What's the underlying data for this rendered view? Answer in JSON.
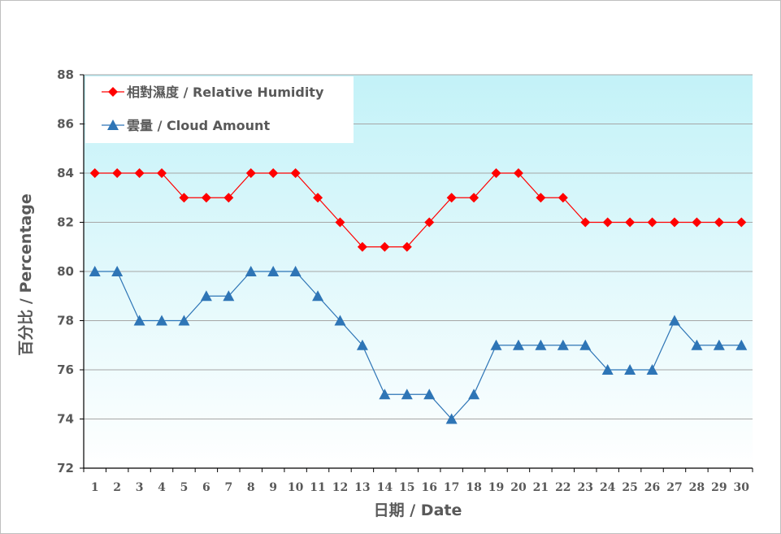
{
  "chart_data": {
    "type": "line",
    "title": "",
    "xlabel": "日期 / Date",
    "ylabel": "百分比 / Percentage",
    "ylim": [
      72,
      88
    ],
    "yticks": [
      72,
      74,
      76,
      78,
      80,
      82,
      84,
      86,
      88
    ],
    "grid": true,
    "legend_position": "upper-left",
    "x": [
      1,
      2,
      3,
      4,
      5,
      6,
      7,
      8,
      9,
      10,
      11,
      12,
      13,
      14,
      15,
      16,
      17,
      18,
      19,
      20,
      21,
      22,
      23,
      24,
      25,
      26,
      27,
      28,
      29,
      30
    ],
    "series": [
      {
        "name": "相對濕度 / Relative Humidity",
        "color": "#ff0000",
        "marker": "diamond",
        "values": [
          84,
          84,
          84,
          84,
          83,
          83,
          83,
          84,
          84,
          84,
          83,
          82,
          81,
          81,
          81,
          82,
          83,
          83,
          84,
          84,
          83,
          83,
          82,
          82,
          82,
          82,
          82,
          82,
          82,
          82
        ]
      },
      {
        "name": "雲量 / Cloud Amount",
        "color": "#2e75b6",
        "marker": "triangle",
        "values": [
          80,
          80,
          78,
          78,
          78,
          79,
          79,
          80,
          80,
          80,
          79,
          78,
          77,
          75,
          75,
          75,
          74,
          75,
          77,
          77,
          77,
          77,
          77,
          76,
          76,
          76,
          78,
          77,
          77,
          77
        ]
      }
    ]
  },
  "legend": {
    "rh_label": "相對濕度 / Relative Humidity",
    "cloud_label": "雲量 / Cloud Amount"
  },
  "axes": {
    "x_title": "日期 / Date",
    "y_title": "百分比 / Percentage"
  }
}
